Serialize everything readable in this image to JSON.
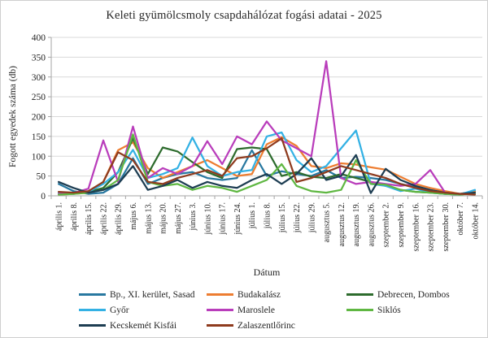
{
  "title": "Keleti gyümölcsmoly csapdahálózat fogási adatai - 2025",
  "chart_data": {
    "type": "line",
    "title": "Keleti gyümölcsmoly csapdahálózat fogási adatai - 2025",
    "xlabel": "Dátum",
    "ylabel": "Fogott egyedek száma (db)",
    "ylim": [
      0,
      400
    ],
    "ytick_step": 50,
    "grid": true,
    "legend_position": "bottom",
    "categories": [
      "április 1.",
      "április 8.",
      "április 15.",
      "április 22.",
      "április 29.",
      "május 6.",
      "május 13.",
      "május 20.",
      "május 27.",
      "június 3.",
      "június 10.",
      "június 17.",
      "június 24.",
      "július 1.",
      "július 8.",
      "július 15.",
      "július 22.",
      "július 29.",
      "augusztus 5.",
      "augusztus 12.",
      "augusztus 19.",
      "augusztus 26.",
      "szeptember 2.",
      "szeptember 9.",
      "szeptember 16.",
      "szeptember 23.",
      "szeptember 30.",
      "október 7.",
      "október 14."
    ],
    "series": [
      {
        "name": "Bp., XI. kerület, Sasad",
        "color": "#2878A0",
        "values": [
          30,
          12,
          5,
          8,
          30,
          95,
          30,
          45,
          55,
          60,
          45,
          40,
          45,
          115,
          50,
          62,
          55,
          50,
          65,
          45,
          48,
          45,
          40,
          30,
          22,
          10,
          8,
          5,
          12
        ]
      },
      {
        "name": "Budakalász",
        "color": "#ED7D31",
        "values": [
          3,
          5,
          8,
          35,
          115,
          135,
          70,
          45,
          60,
          75,
          90,
          70,
          50,
          55,
          130,
          148,
          126,
          75,
          70,
          82,
          79,
          72,
          66,
          48,
          30,
          20,
          12,
          5,
          10
        ]
      },
      {
        "name": "Debrecen, Dombos",
        "color": "#2D6B2D",
        "values": [
          5,
          8,
          10,
          20,
          60,
          145,
          55,
          122,
          112,
          85,
          60,
          45,
          118,
          122,
          118,
          50,
          60,
          48,
          45,
          55,
          45,
          35,
          25,
          15,
          10,
          8,
          5,
          3,
          8
        ]
      },
      {
        "name": "Győr",
        "color": "#33B1E4",
        "values": [
          8,
          5,
          10,
          30,
          60,
          116,
          45,
          55,
          70,
          147,
          75,
          50,
          60,
          65,
          150,
          160,
          90,
          60,
          75,
          120,
          165,
          30,
          25,
          12,
          18,
          8,
          5,
          3,
          15
        ]
      },
      {
        "name": "Maroslele",
        "color": "#B93DBB",
        "values": [
          5,
          7,
          18,
          140,
          35,
          175,
          45,
          70,
          55,
          75,
          138,
          80,
          150,
          130,
          188,
          140,
          120,
          100,
          340,
          45,
          30,
          35,
          30,
          25,
          30,
          65,
          8,
          5,
          5
        ]
      },
      {
        "name": "Siklós",
        "color": "#5FB742",
        "values": [
          3,
          5,
          8,
          15,
          40,
          155,
          35,
          25,
          30,
          15,
          25,
          20,
          10,
          25,
          40,
          80,
          25,
          12,
          8,
          15,
          90,
          30,
          28,
          15,
          10,
          8,
          5,
          3,
          6
        ]
      },
      {
        "name": "Kecskemét Kisfái",
        "color": "#1D3D52",
        "values": [
          35,
          20,
          8,
          15,
          30,
          75,
          15,
          25,
          40,
          20,
          35,
          25,
          20,
          40,
          55,
          30,
          55,
          95,
          40,
          50,
          103,
          7,
          68,
          40,
          25,
          15,
          8,
          5,
          8
        ]
      },
      {
        "name": "Zalaszentlőrinc",
        "color": "#8E3B1E",
        "values": [
          10,
          8,
          12,
          35,
          110,
          90,
          35,
          30,
          45,
          55,
          65,
          50,
          95,
          100,
          120,
          145,
          35,
          45,
          60,
          75,
          65,
          55,
          45,
          30,
          20,
          12,
          8,
          5,
          3
        ]
      }
    ],
    "legend_order_note": "3 columns, row-major"
  },
  "colors": {
    "gridline": "#D9D9D9",
    "axis": "#A6A6A6",
    "text": "#262626"
  }
}
